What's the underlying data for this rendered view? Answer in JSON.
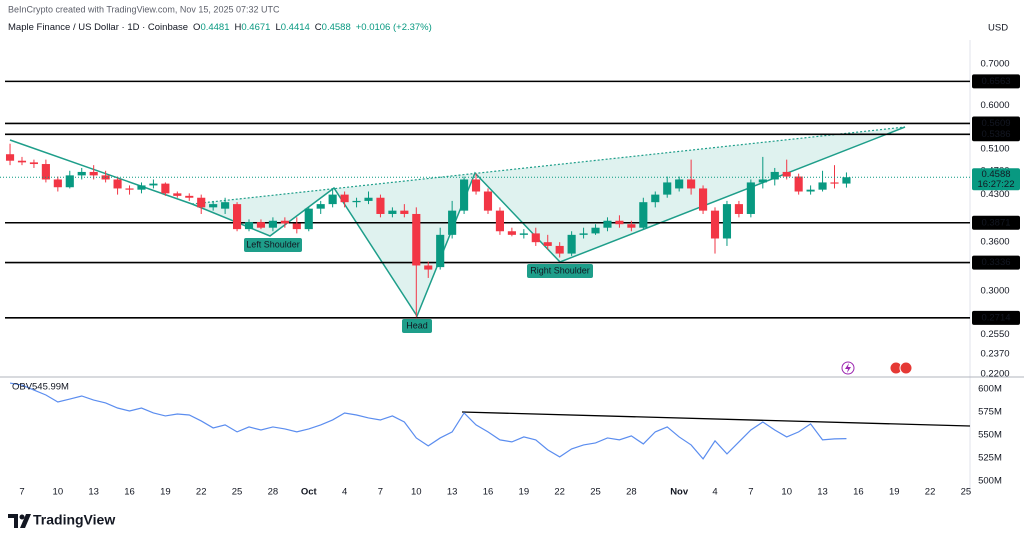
{
  "header": {
    "credit": "BeInCrypto created with TradingView.com, Nov 15, 2025 07:32 UTC",
    "symbol": "Maple Finance / US Dollar · 1D · Coinbase",
    "ohlc_prefixes": [
      "O",
      "H",
      "L",
      "C"
    ],
    "change": "+0.0106 (+2.37%)",
    "currency": "USD"
  },
  "footer": {
    "brand": "TradingView"
  },
  "chart_data": [
    {
      "type": "candlestick",
      "log_scale": true,
      "up_color": "#089981",
      "down_color": "#f23645",
      "x": [
        0,
        1,
        2,
        3,
        4,
        5,
        6,
        7,
        8,
        9,
        10,
        11,
        12,
        13,
        14,
        15,
        16,
        17,
        18,
        19,
        20,
        21,
        22,
        23,
        24,
        25,
        26,
        27,
        28,
        29,
        30,
        31,
        32,
        33,
        34,
        35,
        36,
        37,
        38,
        39,
        40,
        41,
        42,
        43,
        44,
        45,
        46,
        47,
        48,
        49,
        50,
        51,
        52,
        53,
        54,
        55,
        56,
        57,
        58,
        59,
        60,
        61,
        62,
        63,
        64,
        65,
        66,
        67,
        68,
        69,
        70
      ],
      "open": [
        0.5,
        0.488,
        0.485,
        0.482,
        0.455,
        0.442,
        0.462,
        0.468,
        0.462,
        0.455,
        0.44,
        0.438,
        0.445,
        0.448,
        0.432,
        0.428,
        0.425,
        0.41,
        0.408,
        0.415,
        0.378,
        0.388,
        0.38,
        0.39,
        0.386,
        0.378,
        0.408,
        0.415,
        0.43,
        0.418,
        0.42,
        0.425,
        0.4,
        0.405,
        0.4,
        0.33,
        0.328,
        0.37,
        0.405,
        0.455,
        0.435,
        0.405,
        0.375,
        0.37,
        0.372,
        0.36,
        0.355,
        0.345,
        0.37,
        0.372,
        0.38,
        0.39,
        0.385,
        0.38,
        0.418,
        0.43,
        0.44,
        0.455,
        0.44,
        0.405,
        0.365,
        0.415,
        0.4,
        0.45,
        0.455,
        0.468,
        0.46,
        0.435,
        0.438,
        0.45,
        0.4481
      ],
      "high": [
        0.52,
        0.495,
        0.49,
        0.49,
        0.46,
        0.47,
        0.475,
        0.48,
        0.47,
        0.46,
        0.445,
        0.45,
        0.455,
        0.45,
        0.435,
        0.432,
        0.43,
        0.42,
        0.425,
        0.418,
        0.392,
        0.392,
        0.395,
        0.395,
        0.395,
        0.41,
        0.42,
        0.44,
        0.435,
        0.425,
        0.435,
        0.43,
        0.41,
        0.415,
        0.41,
        0.335,
        0.38,
        0.42,
        0.46,
        0.465,
        0.44,
        0.41,
        0.38,
        0.378,
        0.38,
        0.37,
        0.36,
        0.375,
        0.38,
        0.385,
        0.395,
        0.398,
        0.39,
        0.425,
        0.435,
        0.46,
        0.46,
        0.49,
        0.445,
        0.41,
        0.42,
        0.42,
        0.455,
        0.495,
        0.475,
        0.49,
        0.465,
        0.445,
        0.47,
        0.48,
        0.4671
      ],
      "low": [
        0.48,
        0.48,
        0.475,
        0.45,
        0.435,
        0.44,
        0.455,
        0.455,
        0.45,
        0.43,
        0.43,
        0.432,
        0.44,
        0.428,
        0.425,
        0.42,
        0.4,
        0.405,
        0.4,
        0.375,
        0.375,
        0.378,
        0.375,
        0.38,
        0.372,
        0.375,
        0.4,
        0.41,
        0.41,
        0.41,
        0.415,
        0.395,
        0.395,
        0.395,
        0.272,
        0.315,
        0.325,
        0.365,
        0.4,
        0.43,
        0.4,
        0.37,
        0.368,
        0.365,
        0.355,
        0.35,
        0.34,
        0.342,
        0.365,
        0.37,
        0.375,
        0.38,
        0.375,
        0.378,
        0.41,
        0.425,
        0.435,
        0.43,
        0.4,
        0.345,
        0.355,
        0.395,
        0.395,
        0.44,
        0.445,
        0.455,
        0.43,
        0.43,
        0.435,
        0.44,
        0.4414
      ],
      "close": [
        0.488,
        0.485,
        0.482,
        0.455,
        0.442,
        0.462,
        0.468,
        0.462,
        0.455,
        0.44,
        0.438,
        0.445,
        0.448,
        0.432,
        0.428,
        0.425,
        0.41,
        0.415,
        0.418,
        0.378,
        0.388,
        0.38,
        0.39,
        0.386,
        0.378,
        0.408,
        0.415,
        0.43,
        0.418,
        0.42,
        0.425,
        0.4,
        0.405,
        0.4,
        0.33,
        0.325,
        0.37,
        0.405,
        0.455,
        0.435,
        0.405,
        0.375,
        0.37,
        0.372,
        0.36,
        0.355,
        0.345,
        0.37,
        0.372,
        0.38,
        0.39,
        0.385,
        0.38,
        0.418,
        0.43,
        0.45,
        0.455,
        0.44,
        0.405,
        0.365,
        0.415,
        0.4,
        0.45,
        0.455,
        0.468,
        0.46,
        0.435,
        0.438,
        0.45,
        0.448,
        0.4588
      ],
      "countdown": "16:27:22",
      "xlim": [
        -0.84,
        80.34
      ],
      "xticks": [
        {
          "value": 1,
          "label": "7"
        },
        {
          "value": 4,
          "label": "10"
        },
        {
          "value": 7,
          "label": "13"
        },
        {
          "value": 10,
          "label": "16"
        },
        {
          "value": 13,
          "label": "19"
        },
        {
          "value": 16,
          "label": "22"
        },
        {
          "value": 19,
          "label": "25"
        },
        {
          "value": 22,
          "label": "28"
        },
        {
          "value": 25,
          "label": "Oct"
        },
        {
          "value": 28,
          "label": "4"
        },
        {
          "value": 31,
          "label": "7"
        },
        {
          "value": 34,
          "label": "10"
        },
        {
          "value": 37,
          "label": "13"
        },
        {
          "value": 40,
          "label": "16"
        },
        {
          "value": 43,
          "label": "19"
        },
        {
          "value": 46,
          "label": "22"
        },
        {
          "value": 49,
          "label": "25"
        },
        {
          "value": 52,
          "label": "28"
        },
        {
          "value": 56,
          "label": "Nov"
        },
        {
          "value": 59,
          "label": "4"
        },
        {
          "value": 62,
          "label": "7"
        },
        {
          "value": 65,
          "label": "10"
        },
        {
          "value": 68,
          "label": "13"
        },
        {
          "value": 71,
          "label": "16"
        },
        {
          "value": 74,
          "label": "19"
        },
        {
          "value": 77,
          "label": "22"
        },
        {
          "value": 80,
          "label": "25"
        }
      ],
      "ylim": [
        0.2184,
        0.766
      ],
      "yticks": [
        {
          "value": 0.7,
          "label": "0.7000"
        },
        {
          "value": 0.6,
          "label": "0.6000"
        },
        {
          "value": 0.51,
          "label": "0.5100"
        },
        {
          "value": 0.47,
          "label": "0.4700"
        },
        {
          "value": 0.43,
          "label": "0.4300"
        },
        {
          "value": 0.36,
          "label": "0.3600"
        },
        {
          "value": 0.3,
          "label": "0.3000"
        },
        {
          "value": 0.255,
          "label": "0.2550"
        },
        {
          "value": 0.237,
          "label": "0.2370"
        },
        {
          "value": 0.22,
          "label": "0.2200"
        }
      ],
      "levels": [
        0.6563,
        0.5609,
        0.5386,
        0.3871,
        0.3336,
        0.2714
      ],
      "level_color": "#000000",
      "annotations": [
        "Left Shoulder",
        "Head",
        "Right Shoulder"
      ]
    },
    {
      "type": "line",
      "series": [
        {
          "name": "OBV",
          "color": "#5b8def",
          "values": [
            606.5,
            604.3,
            598.9,
            593.5,
            585.9,
            589.1,
            592.4,
            588.0,
            584.8,
            579.3,
            576.1,
            579.3,
            573.9,
            570.7,
            572.8,
            571.7,
            565.2,
            557.6,
            560.9,
            553.3,
            558.7,
            555.4,
            558.7,
            556.5,
            553.3,
            556.5,
            560.9,
            566.3,
            573.9,
            571.7,
            568.5,
            566.3,
            570.7,
            564.1,
            546.7,
            538.0,
            546.7,
            553.3,
            573.9,
            560.9,
            553.3,
            544.6,
            542.4,
            547.8,
            544.6,
            533.7,
            526.1,
            534.8,
            539.1,
            541.3,
            546.7,
            544.6,
            548.9,
            540.2,
            553.3,
            558.7,
            547.8,
            539.1,
            523.9,
            543.5,
            529.3,
            542.4,
            555.4,
            564.1,
            555.4,
            547.8,
            553.3,
            562.0,
            544.6,
            545.7,
            545.99
          ]
        }
      ],
      "legend_value": "545.99M",
      "ylim": [
        490,
        612
      ],
      "yticks": [
        {
          "value": 600,
          "label": "600M"
        },
        {
          "value": 575,
          "label": "575M"
        },
        {
          "value": 550,
          "label": "550M"
        },
        {
          "value": 525,
          "label": "525M"
        },
        {
          "value": 500,
          "label": "500M"
        }
      ]
    }
  ]
}
